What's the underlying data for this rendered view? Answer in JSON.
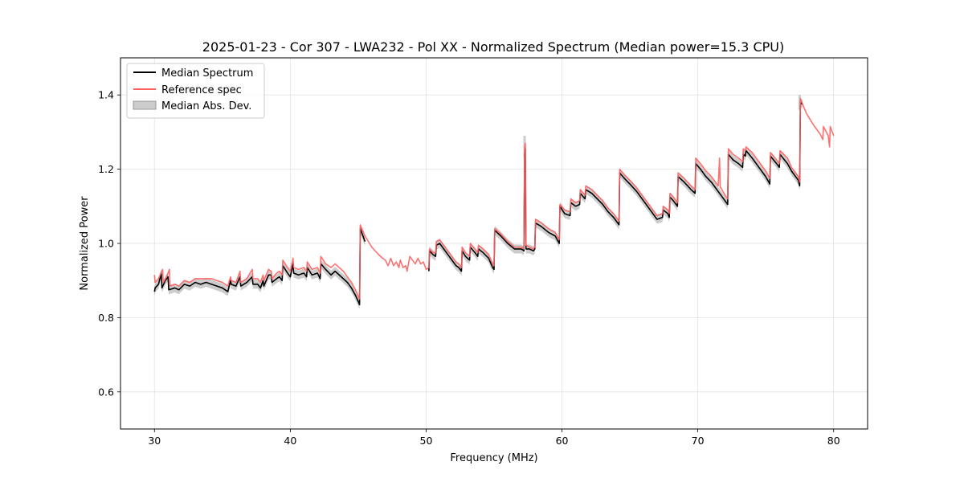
{
  "chart_data": {
    "type": "line",
    "title": "2025-01-23 - Cor 307 - LWA232 - Pol XX - Normalized Spectrum (Median power=15.3 CPU)",
    "xlabel": "Frequency (MHz)",
    "ylabel": "Normalized Power",
    "xlim": [
      27.5,
      82.5
    ],
    "ylim": [
      0.5,
      1.5
    ],
    "xticks": [
      30,
      40,
      50,
      60,
      70,
      80
    ],
    "yticks": [
      0.6,
      0.8,
      1.0,
      1.2,
      1.4
    ],
    "xtick_labels": [
      "30",
      "40",
      "50",
      "60",
      "70",
      "80"
    ],
    "ytick_labels": [
      "0.6",
      "0.8",
      "1.0",
      "1.2",
      "1.4"
    ],
    "grid": true,
    "legend_position": "top-left",
    "legend": [
      "Median Spectrum",
      "Reference spec",
      "Median Abs. Dev."
    ],
    "colors": {
      "median": "#000000",
      "reference": "#ff6060",
      "mad": "#999999"
    },
    "series": [
      {
        "name": "Median Spectrum",
        "segments": [
          {
            "x": [
              30.0,
              30.05,
              30.3,
              30.5,
              30.55,
              30.8,
              31.0,
              31.05,
              31.5,
              31.8,
              32.2,
              32.6,
              33.0,
              33.4,
              33.8,
              34.2,
              34.6,
              35.0,
              35.4,
              35.6,
              35.65,
              36.0,
              36.3,
              36.35,
              36.8,
              37.2,
              37.25,
              37.6,
              37.8,
              38.0,
              38.05,
              38.4,
              38.6,
              38.65,
              39.0,
              39.2,
              39.4,
              39.45,
              39.8,
              40.0,
              40.2,
              40.25,
              40.6,
              41.0,
              41.2,
              41.25,
              41.6,
              42.0,
              42.2,
              42.25,
              42.6,
              43.0,
              43.3,
              43.6,
              43.9,
              44.2,
              44.5,
              44.8,
              45.1,
              45.15,
              45.5
            ],
            "y": [
              0.87,
              0.88,
              0.89,
              0.92,
              0.88,
              0.9,
              0.91,
              0.875,
              0.88,
              0.875,
              0.89,
              0.885,
              0.895,
              0.89,
              0.895,
              0.89,
              0.885,
              0.88,
              0.87,
              0.9,
              0.89,
              0.885,
              0.91,
              0.885,
              0.895,
              0.91,
              0.89,
              0.89,
              0.88,
              0.9,
              0.885,
              0.915,
              0.915,
              0.895,
              0.905,
              0.91,
              0.9,
              0.94,
              0.92,
              0.91,
              0.945,
              0.92,
              0.915,
              0.92,
              0.91,
              0.935,
              0.915,
              0.92,
              0.905,
              0.945,
              0.93,
              0.915,
              0.925,
              0.915,
              0.905,
              0.895,
              0.88,
              0.86,
              0.835,
              1.04,
              1.005
            ]
          },
          {
            "x": [
              50.2,
              50.25,
              50.5,
              50.7,
              50.75,
              51.0,
              51.2,
              51.5,
              51.8,
              52.0,
              52.2,
              52.4,
              52.6,
              52.65,
              52.9,
              53.2,
              53.25,
              53.6,
              53.8,
              53.85,
              54.2,
              54.6,
              54.9,
              55.0,
              55.05,
              55.5,
              56.0,
              56.5,
              57.0,
              57.2,
              57.25,
              57.3,
              57.35,
              57.6,
              57.9,
              58.0,
              58.05,
              58.5,
              59.0,
              59.5,
              59.8,
              59.85,
              60.2,
              60.6,
              60.65,
              61.0,
              61.3,
              61.35,
              61.7,
              61.75,
              62.2,
              62.6,
              63.0,
              63.4,
              63.8,
              64.2,
              64.25,
              64.6,
              65.0,
              65.5,
              66.0,
              66.5,
              67.0,
              67.4,
              67.45,
              67.8,
              67.9,
              67.95,
              68.2,
              68.5,
              68.55,
              69.0,
              69.5,
              69.8,
              69.85,
              70.2,
              70.6,
              71.0,
              71.5,
              72.0,
              72.2,
              72.25,
              72.6,
              73.0,
              73.3,
              73.35,
              73.5,
              73.55,
              74.0,
              74.5,
              75.0,
              75.3,
              75.35,
              75.8,
              76.0,
              76.05,
              76.6,
              76.9,
              77.0,
              77.4,
              77.5,
              77.55,
              77.7
            ],
            "y": [
              0.925,
              0.98,
              0.97,
              0.965,
              0.995,
              1.0,
              0.99,
              0.975,
              0.96,
              0.95,
              0.94,
              0.935,
              0.925,
              0.98,
              0.965,
              0.955,
              0.99,
              0.975,
              0.965,
              0.985,
              0.975,
              0.96,
              0.935,
              0.93,
              1.035,
              1.02,
              1.0,
              0.985,
              0.985,
              0.98,
              1.24,
              1.255,
              0.985,
              0.985,
              0.98,
              0.985,
              1.055,
              1.045,
              1.03,
              1.02,
              1.0,
              1.1,
              1.08,
              1.075,
              1.11,
              1.1,
              1.105,
              1.135,
              1.12,
              1.145,
              1.135,
              1.12,
              1.105,
              1.085,
              1.07,
              1.05,
              1.19,
              1.175,
              1.16,
              1.14,
              1.115,
              1.09,
              1.065,
              1.07,
              1.09,
              1.08,
              1.07,
              1.125,
              1.115,
              1.1,
              1.18,
              1.165,
              1.145,
              1.135,
              1.215,
              1.2,
              1.18,
              1.165,
              1.14,
              1.115,
              1.105,
              1.24,
              1.225,
              1.215,
              1.205,
              1.24,
              1.235,
              1.25,
              1.23,
              1.205,
              1.18,
              1.16,
              1.235,
              1.215,
              1.205,
              1.24,
              1.215,
              1.195,
              1.19,
              1.17,
              1.155,
              1.38,
              1.375
            ]
          }
        ]
      },
      {
        "name": "Reference spec",
        "segments": [
          {
            "x": [
              30.0,
              30.05,
              30.3,
              30.6,
              30.65,
              30.9,
              31.1,
              31.15,
              31.5,
              31.8,
              32.2,
              32.6,
              33.0,
              33.4,
              33.8,
              34.2,
              34.6,
              35.0,
              35.4,
              35.6,
              35.65,
              36.0,
              36.3,
              36.35,
              36.8,
              37.2,
              37.25,
              37.6,
              37.8,
              38.0,
              38.05,
              38.4,
              38.6,
              38.65,
              39.0,
              39.2,
              39.4,
              39.45,
              39.8,
              40.0,
              40.2,
              40.25,
              40.6,
              41.0,
              41.2,
              41.25,
              41.6,
              42.0,
              42.2,
              42.25,
              42.6,
              43.0,
              43.3,
              43.6,
              43.9,
              44.2,
              44.5,
              44.8,
              45.1,
              45.15,
              45.5,
              46.0,
              46.5,
              46.8,
              47.0,
              47.2,
              47.4,
              47.6,
              47.8,
              48.0,
              48.1,
              48.3,
              48.5,
              48.6,
              48.8,
              49.0,
              49.2,
              49.4,
              49.6,
              49.8,
              50.0,
              50.2,
              50.25,
              50.5,
              50.7,
              50.75,
              51.0,
              51.2,
              51.5,
              51.8,
              52.0,
              52.2,
              52.4,
              52.6,
              52.65,
              52.9,
              53.2,
              53.25,
              53.6,
              53.8,
              53.85,
              54.2,
              54.6,
              54.9,
              55.0,
              55.05,
              55.5,
              56.0,
              56.5,
              57.0,
              57.2,
              57.25,
              57.3,
              57.35,
              57.6,
              57.9,
              58.0,
              58.05,
              58.5,
              59.0,
              59.5,
              59.8,
              59.85,
              60.2,
              60.6,
              60.65,
              61.0,
              61.3,
              61.35,
              61.7,
              61.75,
              62.2,
              62.6,
              63.0,
              63.4,
              63.8,
              64.2,
              64.25,
              64.6,
              65.0,
              65.5,
              66.0,
              66.5,
              67.0,
              67.4,
              67.45,
              67.8,
              67.9,
              67.95,
              68.2,
              68.5,
              68.55,
              69.0,
              69.5,
              69.8,
              69.85,
              70.2,
              70.6,
              71.0,
              71.5,
              71.6,
              71.65,
              71.7,
              72.0,
              72.2,
              72.25,
              72.6,
              73.0,
              73.3,
              73.35,
              73.5,
              73.55,
              74.0,
              74.5,
              75.0,
              75.3,
              75.35,
              75.8,
              76.0,
              76.05,
              76.6,
              76.9,
              77.0,
              77.4,
              77.5,
              77.55,
              78.0,
              78.5,
              79.0,
              79.2,
              79.25,
              79.6,
              79.7,
              79.75,
              80.0
            ],
            "y": [
              0.915,
              0.895,
              0.905,
              0.93,
              0.895,
              0.91,
              0.93,
              0.885,
              0.89,
              0.885,
              0.9,
              0.895,
              0.905,
              0.905,
              0.905,
              0.905,
              0.9,
              0.895,
              0.885,
              0.91,
              0.9,
              0.895,
              0.925,
              0.895,
              0.905,
              0.93,
              0.905,
              0.905,
              0.895,
              0.915,
              0.9,
              0.93,
              0.925,
              0.905,
              0.92,
              0.925,
              0.915,
              0.955,
              0.935,
              0.925,
              0.96,
              0.935,
              0.93,
              0.935,
              0.925,
              0.95,
              0.93,
              0.935,
              0.92,
              0.965,
              0.945,
              0.935,
              0.945,
              0.935,
              0.925,
              0.91,
              0.895,
              0.875,
              0.85,
              1.05,
              1.02,
              0.99,
              0.97,
              0.96,
              0.955,
              0.94,
              0.96,
              0.94,
              0.95,
              0.935,
              0.955,
              0.935,
              0.94,
              0.925,
              0.965,
              0.955,
              0.945,
              0.96,
              0.945,
              0.95,
              0.93,
              0.935,
              0.985,
              0.975,
              0.975,
              1.005,
              1.01,
              1.0,
              0.985,
              0.97,
              0.96,
              0.95,
              0.945,
              0.935,
              0.99,
              0.975,
              0.965,
              1.0,
              0.985,
              0.975,
              0.995,
              0.985,
              0.97,
              0.945,
              0.94,
              1.04,
              1.025,
              1.005,
              0.99,
              0.99,
              0.985,
              1.26,
              1.27,
              0.995,
              0.99,
              0.985,
              0.99,
              1.065,
              1.055,
              1.04,
              1.03,
              1.01,
              1.105,
              1.09,
              1.085,
              1.12,
              1.11,
              1.115,
              1.145,
              1.13,
              1.155,
              1.145,
              1.13,
              1.115,
              1.095,
              1.08,
              1.06,
              1.2,
              1.185,
              1.17,
              1.15,
              1.125,
              1.1,
              1.075,
              1.08,
              1.1,
              1.09,
              1.08,
              1.135,
              1.125,
              1.11,
              1.19,
              1.175,
              1.155,
              1.145,
              1.23,
              1.215,
              1.195,
              1.18,
              1.155,
              1.23,
              1.15,
              1.15,
              1.13,
              1.12,
              1.255,
              1.24,
              1.23,
              1.22,
              1.255,
              1.25,
              1.26,
              1.245,
              1.22,
              1.195,
              1.175,
              1.245,
              1.225,
              1.215,
              1.25,
              1.23,
              1.205,
              1.2,
              1.18,
              1.165,
              1.39,
              1.35,
              1.32,
              1.295,
              1.28,
              1.315,
              1.29,
              1.26,
              1.315,
              1.29
            ]
          }
        ]
      },
      {
        "name": "Median Abs. Dev.",
        "band_width": 0.012,
        "spikes": [
          {
            "x": 57.25,
            "low": 1.23,
            "high": 1.29
          },
          {
            "x": 77.5,
            "low": 1.36,
            "high": 1.4
          }
        ]
      }
    ]
  }
}
